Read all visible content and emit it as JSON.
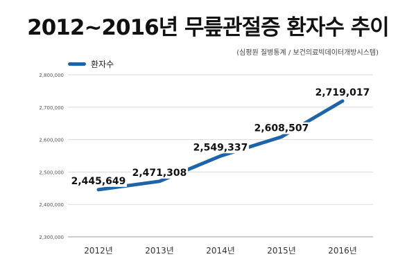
{
  "title": "2012~2016년 무릎관절증 환자수 추이",
  "source": "(심평원 질병통계 / 보건의료빅데이터개방시스템)",
  "chart_data": {
    "type": "line",
    "categories": [
      "2012년",
      "2013년",
      "2014년",
      "2015년",
      "2016년"
    ],
    "series": [
      {
        "name": "환자수",
        "values": [
          2445649,
          2471308,
          2549337,
          2608507,
          2719017
        ],
        "data_labels": [
          "2,445,649",
          "2,471,308",
          "2,549,337",
          "2,608,507",
          "2,719,017"
        ],
        "color": "#1f63a8"
      }
    ],
    "yticks": [
      "2,300,000",
      "2,400,000",
      "2,500,000",
      "2,600,000",
      "2,700,000",
      "2,800,000"
    ],
    "ylim": [
      2300000,
      2800000
    ],
    "grid": true,
    "legend_position": "top-left"
  }
}
